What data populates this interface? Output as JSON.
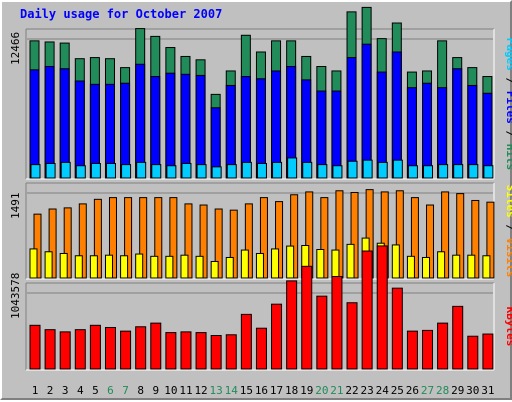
{
  "title": "Daily usage for October 2007",
  "colors": {
    "hits": "#228b5a",
    "files": "#0000ff",
    "pages": "#00ccff",
    "visits": "#ff8000",
    "sites": "#ffff00",
    "kbytes": "#ff0000",
    "weekend_label": "#228b5a",
    "weekday_label": "#000000",
    "separator": "#000000"
  },
  "chart_data": [
    {
      "type": "bar",
      "panel": "hits_files_pages",
      "side_label": [
        "Pages",
        "Files",
        "Hits"
      ],
      "ytick": "12466",
      "ymax": 12466,
      "categories": [
        "1",
        "2",
        "3",
        "4",
        "5",
        "6",
        "7",
        "8",
        "9",
        "10",
        "11",
        "12",
        "13",
        "14",
        "15",
        "16",
        "17",
        "18",
        "19",
        "20",
        "21",
        "22",
        "23",
        "24",
        "25",
        "26",
        "27",
        "28",
        "29",
        "30",
        "31"
      ],
      "weekend": [
        6,
        7,
        13,
        14,
        20,
        21,
        27,
        28
      ],
      "series": [
        {
          "name": "Hits",
          "values": [
            12300,
            12200,
            12100,
            10700,
            10800,
            10700,
            9900,
            13400,
            12700,
            11700,
            10900,
            10600,
            7500,
            9600,
            12800,
            11300,
            12300,
            12300,
            10900,
            10000,
            9600,
            14900,
            15300,
            12500,
            13900,
            9500,
            9600,
            12300,
            10800,
            9900,
            9100
          ]
        },
        {
          "name": "Files",
          "values": [
            9700,
            10000,
            9800,
            8700,
            8400,
            8400,
            8500,
            10200,
            9100,
            9400,
            9300,
            9200,
            6300,
            8300,
            9100,
            8900,
            9600,
            10000,
            8800,
            7800,
            7800,
            10800,
            12000,
            9500,
            11300,
            8100,
            8500,
            8100,
            9800,
            8300,
            7600
          ]
        },
        {
          "name": "Pages",
          "values": [
            1200,
            1300,
            1400,
            1100,
            1300,
            1300,
            1200,
            1400,
            1200,
            1100,
            1300,
            1200,
            1000,
            1200,
            1400,
            1300,
            1400,
            1800,
            1400,
            1200,
            1100,
            1500,
            1600,
            1400,
            1600,
            1100,
            1100,
            1200,
            1200,
            1200,
            1100
          ]
        }
      ]
    },
    {
      "type": "bar",
      "panel": "visits_sites",
      "side_label": [
        "Sites",
        "Visits"
      ],
      "ytick": "1491",
      "ymax": 1491,
      "series": [
        {
          "name": "Visits",
          "values": [
            1120,
            1210,
            1230,
            1300,
            1380,
            1410,
            1410,
            1410,
            1410,
            1410,
            1300,
            1280,
            1210,
            1190,
            1300,
            1410,
            1340,
            1460,
            1510,
            1410,
            1530,
            1500,
            1550,
            1510,
            1530,
            1410,
            1280,
            1510,
            1480,
            1360,
            1330
          ]
        },
        {
          "name": "Sites",
          "values": [
            510,
            460,
            430,
            390,
            390,
            400,
            390,
            420,
            380,
            380,
            400,
            380,
            290,
            360,
            490,
            430,
            510,
            560,
            570,
            500,
            490,
            590,
            700,
            610,
            580,
            380,
            360,
            460,
            400,
            400,
            390
          ]
        }
      ]
    },
    {
      "type": "bar",
      "panel": "kbytes",
      "side_label": [
        "KBytes"
      ],
      "ytick": "1043578",
      "ymax": 1043578,
      "series": [
        {
          "name": "KBytes",
          "values": [
            600000,
            540000,
            510000,
            540000,
            600000,
            570000,
            520000,
            580000,
            630000,
            500000,
            510000,
            500000,
            460000,
            470000,
            750000,
            560000,
            890000,
            1210000,
            1410000,
            1000000,
            1270000,
            910000,
            1620000,
            1690000,
            1110000,
            520000,
            530000,
            630000,
            860000,
            450000,
            480000
          ]
        }
      ]
    }
  ]
}
